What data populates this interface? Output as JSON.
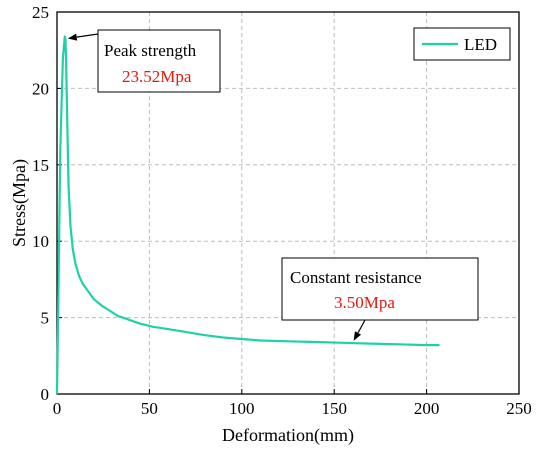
{
  "chart_data": {
    "type": "line",
    "xlabel": "Deformation(mm)",
    "ylabel": "Stress(Mpa)",
    "xlim": [
      0,
      250
    ],
    "ylim": [
      0,
      25
    ],
    "x_ticks": [
      0,
      50,
      100,
      150,
      200,
      250
    ],
    "y_ticks": [
      0,
      5,
      10,
      15,
      20,
      25
    ],
    "grid": true,
    "legend_position": "top-right",
    "series": [
      {
        "name": "LED",
        "color": "#1fd1a8",
        "x": [
          0,
          0.8,
          1.8,
          3.2,
          4.2,
          4.6,
          5.0,
          5.5,
          6.3,
          7.3,
          8.5,
          10,
          12,
          14,
          17,
          20,
          24,
          28,
          33,
          38,
          45,
          52,
          60,
          70,
          80,
          90,
          100,
          110,
          125,
          140,
          155,
          170,
          185,
          200,
          207
        ],
        "y": [
          0,
          7,
          16,
          22,
          23.4,
          23.2,
          21.5,
          18,
          13.5,
          11,
          9.5,
          8.5,
          7.7,
          7.2,
          6.7,
          6.2,
          5.8,
          5.5,
          5.1,
          4.9,
          4.6,
          4.4,
          4.25,
          4.05,
          3.85,
          3.7,
          3.6,
          3.5,
          3.45,
          3.4,
          3.35,
          3.3,
          3.25,
          3.2,
          3.2
        ]
      }
    ],
    "annotations": [
      {
        "label": "Peak strength",
        "value": "23.52Mpa",
        "target": [
          4.2,
          23.4
        ]
      },
      {
        "label": "Constant resistance",
        "value": "3.50Mpa",
        "target": [
          160,
          3.35
        ]
      }
    ]
  }
}
